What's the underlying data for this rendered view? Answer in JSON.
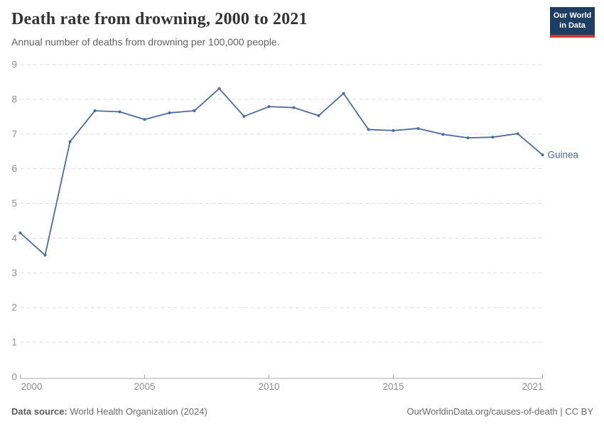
{
  "header": {
    "title": "Death rate from drowning, 2000 to 2021",
    "subtitle": "Annual number of deaths from drowning per 100,000 people."
  },
  "logo": {
    "line1": "Our World",
    "line2": "in Data",
    "bg_color": "#1d3d63",
    "accent_color": "#d7352c"
  },
  "chart_data": {
    "type": "line",
    "title": "Death rate from drowning, 2000 to 2021",
    "subtitle": "Annual number of deaths from drowning per 100,000 people.",
    "xlabel": "",
    "ylabel": "",
    "xlim": [
      2000,
      2021
    ],
    "ylim": [
      0,
      9
    ],
    "x_ticks": [
      2000,
      2005,
      2010,
      2015,
      2021
    ],
    "y_ticks": [
      0,
      1,
      2,
      3,
      4,
      5,
      6,
      7,
      8,
      9
    ],
    "grid": "horizontal-dashed",
    "legend": "end-of-line-label",
    "grid_color": "#dedede",
    "axis_color": "#a9a9a9",
    "series": [
      {
        "name": "Guinea",
        "color": "#4c6a9c",
        "x": [
          2000,
          2001,
          2002,
          2003,
          2004,
          2005,
          2006,
          2007,
          2008,
          2009,
          2010,
          2011,
          2012,
          2013,
          2014,
          2015,
          2016,
          2017,
          2018,
          2019,
          2020,
          2021
        ],
        "values": [
          4.15,
          3.51,
          6.78,
          7.67,
          7.64,
          7.42,
          7.61,
          7.67,
          8.31,
          7.51,
          7.79,
          7.76,
          7.53,
          8.17,
          7.13,
          7.1,
          7.16,
          6.99,
          6.89,
          6.91,
          7.01,
          6.4
        ]
      }
    ]
  },
  "footer": {
    "datasource_label": "Data source:",
    "datasource": "World Health Organization (2024)",
    "right": "OurWorldinData.org/causes-of-death | CC BY"
  }
}
